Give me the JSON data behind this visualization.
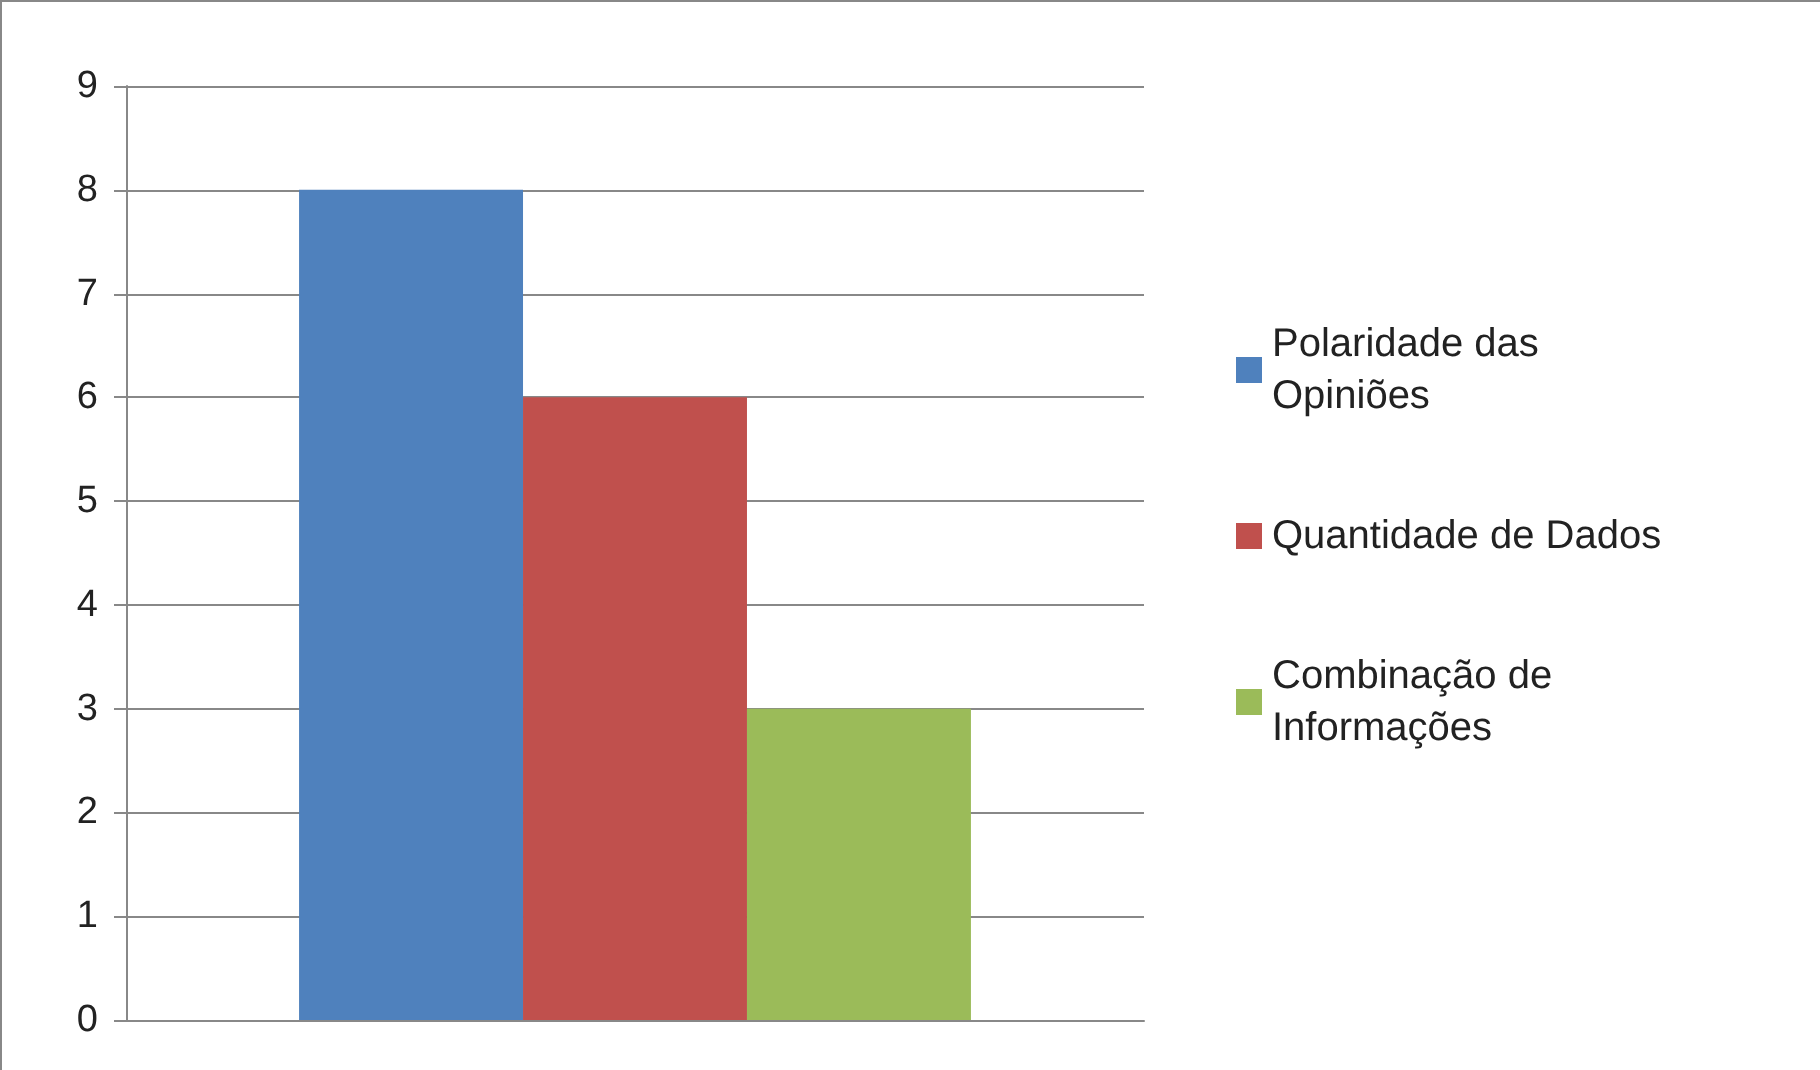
{
  "chart_data": {
    "type": "bar",
    "categories": [
      null
    ],
    "series": [
      {
        "name": "Polaridade das Opiniões",
        "color": "#4f81bd",
        "values": [
          8
        ]
      },
      {
        "name": "Quantidade de Dados",
        "color": "#c0504d",
        "values": [
          6
        ]
      },
      {
        "name": "Combinação de Informações",
        "color": "#9bbb59",
        "values": [
          3
        ]
      }
    ],
    "ylim": [
      0,
      9
    ],
    "yticks": [
      0,
      1,
      2,
      3,
      4,
      5,
      6,
      7,
      8,
      9
    ],
    "grid": "y",
    "legend": "right"
  }
}
